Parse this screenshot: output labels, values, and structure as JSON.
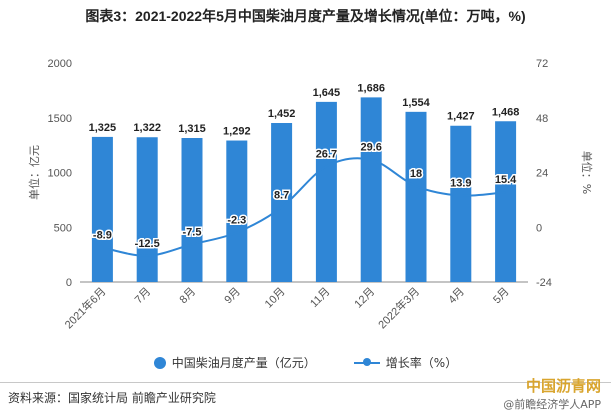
{
  "chart_data": {
    "type": "bar",
    "title": "图表3：2021-2022年5月中国柴油月度产量及增长情况(单位：万吨，%)",
    "categories": [
      "2021年6月",
      "7月",
      "8月",
      "9月",
      "10月",
      "11月",
      "12月",
      "2022年3月",
      "4月",
      "5月"
    ],
    "series": [
      {
        "name": "中国柴油月度产量（亿元）",
        "type": "bar",
        "axis": "left",
        "color": "#2f86d6",
        "values": [
          1325,
          1322,
          1315,
          1292,
          1452,
          1645,
          1686,
          1554,
          1427,
          1468
        ],
        "labels": [
          "1,325",
          "1,322",
          "1,315",
          "1,292",
          "1,452",
          "1,645",
          "1,686",
          "1,554",
          "1,427",
          "1,468"
        ]
      },
      {
        "name": "增长率（%）",
        "type": "line",
        "axis": "right",
        "color": "#2f86d6",
        "values": [
          -8.9,
          -12.5,
          -7.5,
          -2.3,
          8.7,
          26.7,
          29.6,
          18,
          13.9,
          15.4
        ],
        "labels": [
          "-8.9",
          "-12.5",
          "-7.5",
          "-2.3",
          "8.7",
          "26.7",
          "29.6",
          "18",
          "13.9",
          "15.4"
        ]
      }
    ],
    "ylabel": "单位：亿元",
    "y2label": "单位：%",
    "ylim": [
      0,
      2000
    ],
    "y_ticks": [
      0,
      500,
      1000,
      1500,
      2000
    ],
    "y2lim": [
      -24,
      72
    ],
    "y2_ticks": [
      -24,
      0,
      24,
      48,
      72
    ],
    "grid": false,
    "legend_position": "bottom"
  },
  "source_text": "资料来源：国家统计局 前瞻产业研究院",
  "watermark_site": "中国沥青网",
  "watermark_app": "@前瞻经济学人APP"
}
